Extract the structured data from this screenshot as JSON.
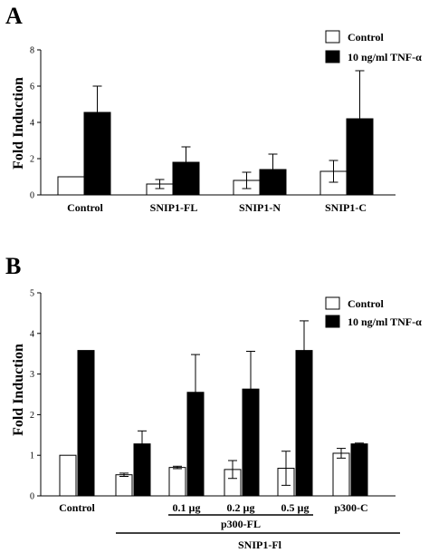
{
  "chart_data": [
    {
      "panel": "A",
      "type": "bar",
      "ylabel": "Fold Induction",
      "ylim": [
        0,
        8
      ],
      "yticks": [
        0,
        2,
        4,
        6,
        8
      ],
      "categories": [
        "Control",
        "SNIP1-FL",
        "SNIP1-N",
        "SNIP1-C"
      ],
      "series": [
        {
          "name": "Control",
          "color": "#ffffff",
          "values": [
            1.0,
            0.6,
            0.8,
            1.3
          ],
          "errors": [
            0,
            0.25,
            0.45,
            0.6
          ]
        },
        {
          "name": "10 ng/ml TNF-α",
          "color": "#000000",
          "values": [
            4.55,
            1.8,
            1.4,
            4.2
          ],
          "errors": [
            1.45,
            0.85,
            0.85,
            2.65
          ]
        }
      ],
      "legend_position": "top-right"
    },
    {
      "panel": "B",
      "type": "bar",
      "ylabel": "Fold Induction",
      "ylim": [
        0,
        5
      ],
      "yticks": [
        0,
        1,
        2,
        3,
        4,
        5
      ],
      "categories": [
        "Control",
        "",
        "0.1 µg",
        "0.2 µg",
        "0.5 µg",
        "p300-C"
      ],
      "series": [
        {
          "name": "Control",
          "color": "#ffffff",
          "values": [
            1.0,
            0.52,
            0.7,
            0.65,
            0.68,
            1.05
          ],
          "errors": [
            0,
            0.04,
            0.03,
            0.22,
            0.42,
            0.12
          ]
        },
        {
          "name": "10 ng/ml TNF-α",
          "color": "#000000",
          "values": [
            3.58,
            1.28,
            2.55,
            2.63,
            3.58,
            1.28
          ],
          "errors": [
            0,
            0.32,
            0.93,
            0.93,
            0.73,
            0.02
          ]
        }
      ],
      "group_labels": {
        "p300": "p300-FL",
        "snip": "SNIP1-Fl"
      },
      "legend_position": "top-right"
    }
  ],
  "panel_letters": {
    "a": "A",
    "b": "B"
  }
}
